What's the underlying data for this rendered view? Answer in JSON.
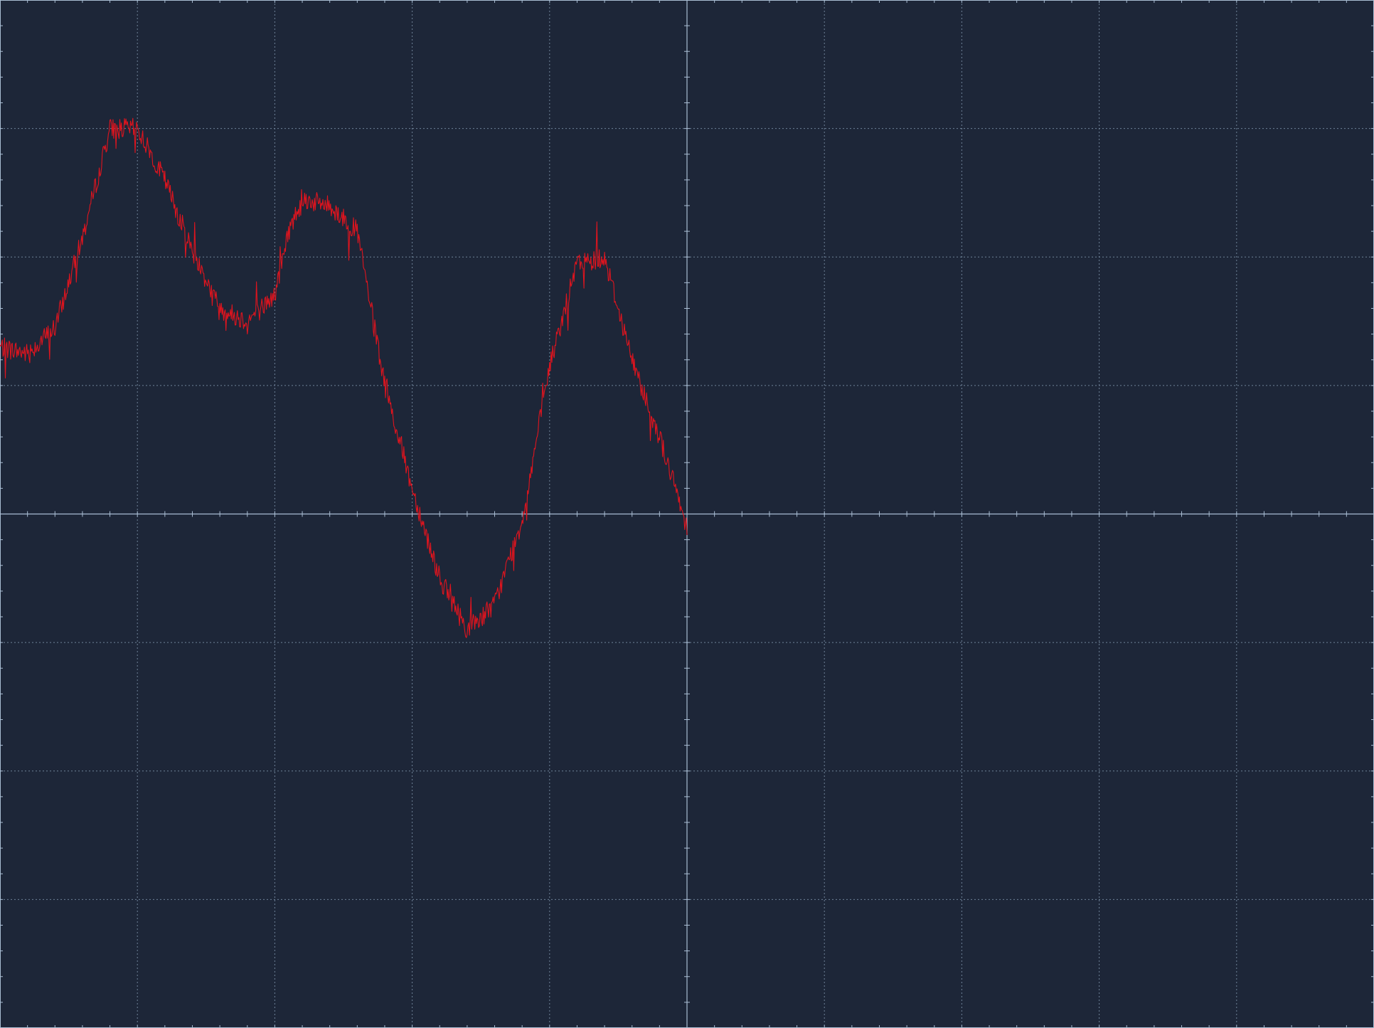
{
  "colors": {
    "background": "#1d2638",
    "grid": "#6f8298",
    "axis": "#a9bdd3",
    "trace": "#e0141e"
  },
  "chart_data": {
    "type": "line",
    "title": "",
    "xlabel": "",
    "ylabel": "",
    "grid": true,
    "x_divisions": 10,
    "y_divisions": 8,
    "minor_ticks_per_division": 5,
    "xlim": [
      -5,
      5
    ],
    "ylim": [
      -4,
      4
    ],
    "series": [
      {
        "x": [
          -5.0,
          -4.8,
          -4.6,
          -4.4,
          -4.2,
          -4.0,
          -3.8,
          -3.6,
          -3.4,
          -3.2,
          -3.0,
          -2.9,
          -2.8,
          -2.6,
          -2.4,
          -2.2,
          -2.0,
          -1.8,
          -1.6,
          -1.4,
          -1.2,
          -1.0,
          -0.8,
          -0.6,
          -0.4,
          -0.2,
          0.0
        ],
        "y": [
          1.3,
          1.25,
          1.45,
          2.15,
          3.0,
          3.0,
          2.6,
          2.05,
          1.6,
          1.5,
          1.7,
          2.2,
          2.45,
          2.4,
          2.2,
          1.0,
          0.2,
          -0.5,
          -0.9,
          -0.7,
          -0.05,
          1.15,
          1.95,
          2.0,
          1.2,
          0.6,
          -0.1
        ]
      }
    ]
  }
}
